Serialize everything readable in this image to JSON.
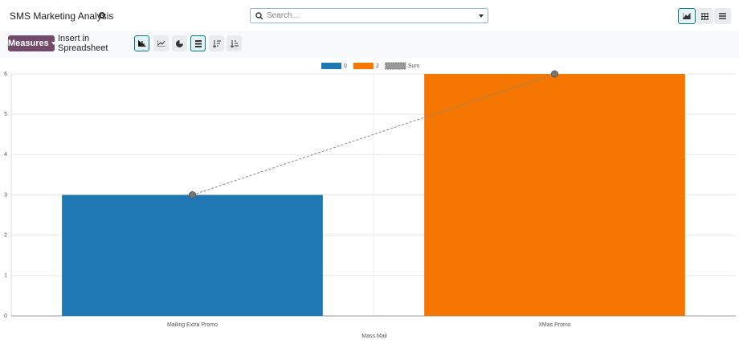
{
  "header": {
    "title": "SMS Marketing Analysis",
    "search_placeholder": "Search..."
  },
  "toolbar": {
    "measures": "Measures",
    "insert": "Insert in Spreadsheet"
  },
  "chart_data": {
    "type": "bar",
    "categories": [
      "Mailing Extra Promo",
      "XMas Promo"
    ],
    "series": [
      {
        "name": "0",
        "color": "#1f77b4",
        "values": [
          3,
          null
        ]
      },
      {
        "name": "2",
        "color": "#f57600",
        "values": [
          null,
          6
        ]
      },
      {
        "name": "Sum",
        "color": "#888888",
        "type": "line",
        "values": [
          3,
          6
        ]
      }
    ],
    "xlabel": "Mass Mail",
    "ylim": [
      0,
      6
    ],
    "yticks": [
      0,
      1,
      2,
      3,
      4,
      5,
      6
    ],
    "grid": true,
    "legend": "top"
  }
}
